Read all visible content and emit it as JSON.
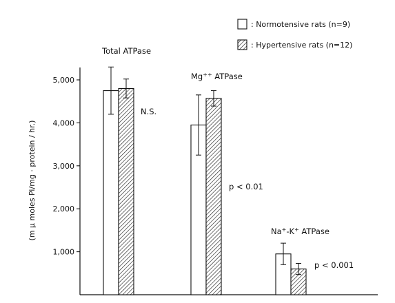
{
  "chart_data": {
    "type": "bar",
    "categories": [
      "Total ATPase",
      "Mg++ ATPase",
      "Na+-K+ ATPase"
    ],
    "category_labels": [
      {
        "main": "Total ATPase",
        "sup1": "",
        "mid": "",
        "sup2": "",
        "tail": ""
      },
      {
        "main": "Mg",
        "sup1": "++",
        "mid": "",
        "sup2": "",
        "tail": " ATPase"
      },
      {
        "main": "Na",
        "sup1": "+",
        "mid": "-K",
        "sup2": "+",
        "tail": " ATPase"
      }
    ],
    "series": [
      {
        "name": "Normotensive rats (n=9)",
        "legend_text": ": Normotensive rats (n=9)",
        "pattern": "open",
        "values": [
          4750,
          3950,
          950
        ],
        "error": [
          550,
          700,
          250
        ]
      },
      {
        "name": "Hypertensive rats (n=12)",
        "legend_text": ": Hypertensive rats (n=12)",
        "pattern": "hatched",
        "values": [
          4800,
          4570,
          600
        ],
        "error": [
          220,
          180,
          130
        ]
      }
    ],
    "significance": [
      "N.S.",
      "p < 0.01",
      "p < 0.001"
    ],
    "ylabel": "(m μ moles Pi/mg · protein / hr.)",
    "yticks": [
      1000,
      2000,
      3000,
      4000,
      5000
    ],
    "ytick_labels": [
      "1,000",
      "2,000",
      "3,000",
      "4,000",
      "5,000"
    ],
    "ylim": [
      0,
      5300
    ],
    "grid": false,
    "legend_position": "top-right",
    "colors": {
      "ink": "#111111",
      "open_fill": "#ffffff",
      "hatch": "#222222"
    }
  }
}
